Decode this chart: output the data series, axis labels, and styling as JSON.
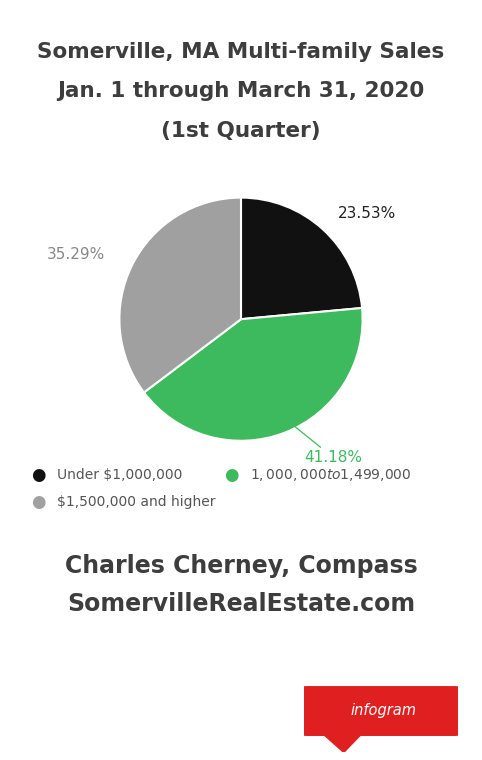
{
  "title_line1": "Somerville, MA Multi-family Sales",
  "title_line2": "Jan. 1 through March 31, 2020",
  "title_line3": "(1st Quarter)",
  "slices": [
    23.53,
    41.18,
    35.29
  ],
  "slice_colors": [
    "#111111",
    "#3dba5e",
    "#a0a0a0"
  ],
  "slice_labels": [
    "23.53%",
    "41.18%",
    "35.29%"
  ],
  "label_colors": [
    "#222222",
    "#3dba5e",
    "#888888"
  ],
  "legend_labels": [
    "Under $1,000,000",
    "$1,000,000 to $1,499,000",
    "$1,500,000 and higher"
  ],
  "legend_colors": [
    "#111111",
    "#3dba5e",
    "#a0a0a0"
  ],
  "footer_line1": "Charles Cherney, Compass",
  "footer_line2": "SomervilleRealEstate.com",
  "background_color": "#ffffff",
  "title_color": "#3d3d3d",
  "footer_color": "#3d3d3d",
  "legend_text_color": "#555555",
  "separator_color": "#cccccc",
  "badge_color": "#e02020",
  "startangle": 90
}
